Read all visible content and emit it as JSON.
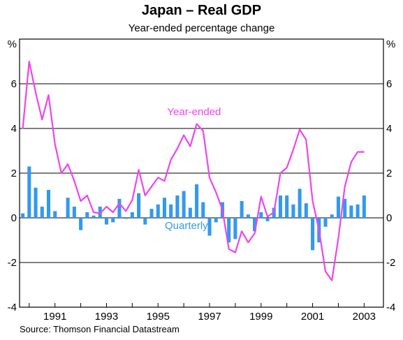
{
  "chart_data": {
    "type": "bar+line",
    "title": "Japan – Real GDP",
    "subtitle": "Year-ended percentage change",
    "source": "Source: Thomson Financial Datastream",
    "y_unit": "%",
    "ylim": [
      -4,
      8
    ],
    "y_ticks": [
      -4,
      -2,
      0,
      2,
      4,
      6
    ],
    "x_tick_labels": [
      "1991",
      "1993",
      "1995",
      "1997",
      "1999",
      "2001",
      "2003"
    ],
    "x_start": 1989.625,
    "x_end": 2003.75,
    "grid": true,
    "colors": {
      "year_ended": "#ee44ee",
      "quarterly": "#3399ee"
    },
    "series": [
      {
        "name": "Quarterly",
        "kind": "bar",
        "x": [
          1989.75,
          1990.0,
          1990.25,
          1990.5,
          1990.75,
          1991.0,
          1991.25,
          1991.5,
          1991.75,
          1992.0,
          1992.25,
          1992.5,
          1992.75,
          1993.0,
          1993.25,
          1993.5,
          1993.75,
          1994.0,
          1994.25,
          1994.5,
          1994.75,
          1995.0,
          1995.25,
          1995.5,
          1995.75,
          1996.0,
          1996.25,
          1996.5,
          1996.75,
          1997.0,
          1997.25,
          1997.5,
          1997.75,
          1998.0,
          1998.25,
          1998.5,
          1998.75,
          1999.0,
          1999.25,
          1999.5,
          1999.75,
          2000.0,
          2000.25,
          2000.5,
          2000.75,
          2001.0,
          2001.25,
          2001.5,
          2001.75,
          2002.0,
          2002.25,
          2002.5,
          2002.75,
          2003.0,
          2003.25
        ],
        "values": [
          0.2,
          2.3,
          1.35,
          0.5,
          1.25,
          0.3,
          0.0,
          0.9,
          0.5,
          -0.55,
          0.25,
          0.1,
          0.5,
          -0.3,
          -0.2,
          0.85,
          -0.05,
          0.25,
          1.1,
          -0.3,
          0.4,
          0.6,
          0.9,
          0.6,
          1.0,
          1.2,
          0.45,
          1.5,
          0.7,
          -0.8,
          -0.2,
          0.7,
          -1.1,
          -0.95,
          0.75,
          0.15,
          -0.6,
          0.25,
          -0.15,
          0.45,
          1.0,
          1.0,
          0.6,
          1.3,
          0.65,
          -1.45,
          -1.1,
          -0.4,
          0.15,
          0.95,
          0.85,
          0.55,
          0.6,
          1.0,
          0.0
        ]
      },
      {
        "name": "Year-ended",
        "kind": "line",
        "x": [
          1989.75,
          1990.0,
          1990.25,
          1990.5,
          1990.75,
          1991.0,
          1991.25,
          1991.5,
          1991.75,
          1992.0,
          1992.25,
          1992.5,
          1992.75,
          1993.0,
          1993.25,
          1993.5,
          1993.75,
          1994.0,
          1994.25,
          1994.5,
          1994.75,
          1995.0,
          1995.25,
          1995.5,
          1995.75,
          1996.0,
          1996.25,
          1996.5,
          1996.75,
          1997.0,
          1997.25,
          1997.5,
          1997.75,
          1998.0,
          1998.25,
          1998.5,
          1998.75,
          1999.0,
          1999.25,
          1999.5,
          1999.75,
          2000.0,
          2000.25,
          2000.5,
          2000.75,
          2001.0,
          2001.25,
          2001.5,
          2001.75,
          2002.0,
          2002.25,
          2002.5,
          2002.75,
          2003.0
        ],
        "values": [
          4.0,
          7.0,
          5.6,
          4.4,
          5.5,
          3.3,
          2.0,
          2.4,
          1.65,
          0.75,
          1.0,
          0.25,
          0.2,
          0.5,
          0.25,
          0.65,
          0.3,
          0.8,
          2.15,
          1.0,
          1.4,
          1.8,
          1.65,
          2.6,
          3.1,
          3.7,
          3.2,
          4.2,
          3.9,
          1.8,
          1.15,
          0.35,
          -1.4,
          -1.55,
          -0.6,
          -1.1,
          -0.7,
          0.95,
          0.05,
          0.25,
          2.0,
          2.25,
          3.05,
          3.95,
          3.5,
          0.75,
          -0.55,
          -2.4,
          -2.8,
          -0.9,
          1.4,
          2.5,
          2.95,
          2.95
        ]
      }
    ],
    "annotations": [
      {
        "text": "Year-ended",
        "x": 1996.4,
        "y": 4.6
      },
      {
        "text": "Quarterly",
        "x": 1996.1,
        "y": -0.5
      }
    ]
  }
}
